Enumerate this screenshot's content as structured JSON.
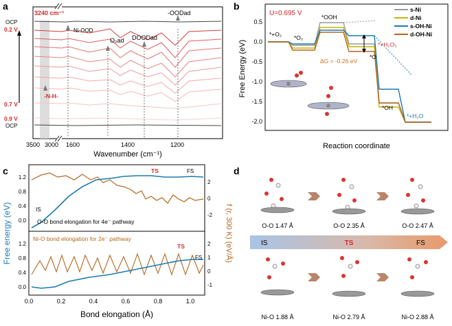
{
  "panels": {
    "a": {
      "label": "a",
      "wavenumber_marker": "3240 cm⁻¹",
      "potential_top": "0.2 V",
      "potential_mid": "0.7 V",
      "potential_low": "0.9 V",
      "ocp_top": "OCP",
      "ocp_bottom": "OCP",
      "peak_labels": {
        "nh": "-N-H-",
        "niood": "Ni-OOD",
        "o2ad": "O₂ad",
        "doodad": "DOODad",
        "oodad": "-OODad"
      },
      "xlabel": "Wavenumber (cm⁻¹)",
      "xticks": [
        "3500",
        "3000",
        "1600",
        "1400",
        "1200"
      ]
    },
    "b": {
      "label": "b",
      "potential": "U=0.695 V",
      "ylabel": "Free Energy (eV)",
      "xlabel": "Reaction coordinate",
      "yticks": [
        "0.5",
        "0.0",
        "-0.5",
        "-1.0",
        "-1.5",
        "-2.0"
      ],
      "species": {
        "o2": "*+O₂",
        "star_o2": "*O₂",
        "ooh": "*OOH",
        "h2o2": "*+H₂O₂",
        "o": "*O",
        "oh": "*OH",
        "h2o": "*+H₂O"
      },
      "delta_g": "ΔG = -0.26 eV",
      "legend": [
        "s-Ni",
        "d-Ni",
        "s-OH-Ni",
        "d-OH-Ni"
      ],
      "colors": [
        "#9a9a9a",
        "#c8b400",
        "#1a7ab0",
        "#b5651d"
      ]
    },
    "c": {
      "label": "c",
      "ylabel_left": "Free energy (eV)",
      "ylabel_right": "f (r, 300 K) (eV/Å)",
      "xlabel": "Bond elongation (Å)",
      "top_caption": "O-O bond elongation for 4e⁻ pathway",
      "bottom_caption": "Ni-O bond elongation for 2e⁻ pathway",
      "ts": "TS",
      "fs": "FS",
      "is": "IS",
      "xticks": [
        "0.0",
        "0.2",
        "0.4",
        "0.6",
        "0.8",
        "1.0"
      ],
      "yticks_left_top": [
        "1.2",
        "0.8",
        "0.4",
        "0.0"
      ],
      "yticks_left_bottom": [
        "1.2",
        "0.8",
        "0.4",
        "0.0"
      ],
      "yticks_right_top": [
        "2",
        "0",
        "-2"
      ],
      "yticks_right_bottom": [
        "2",
        "1",
        "0",
        "-1"
      ]
    },
    "d": {
      "label": "d",
      "arrow_labels": [
        "IS",
        "TS",
        "FS"
      ],
      "top_row": [
        "O-O  1.47 Å",
        "O-O  2.35 Å",
        "O-O  2.47 Å"
      ],
      "bottom_row": [
        "Ni-O  1.88 Å",
        "Ni-O  2.79 Å",
        "Ni-O  2.88 Å"
      ]
    }
  }
}
